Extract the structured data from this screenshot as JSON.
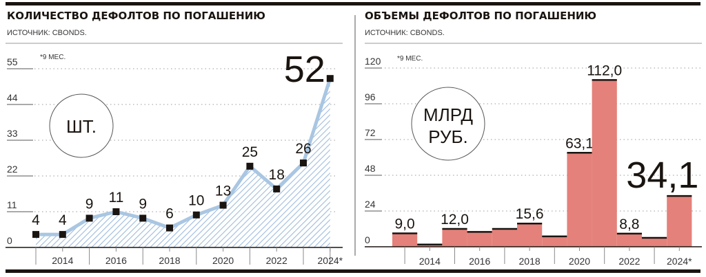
{
  "chart_data": [
    {
      "type": "area",
      "title": "КОЛИЧЕСТВО ДЕФОЛТОВ ПО ПОГАШЕНИЮ",
      "source": "ИСТОЧНИК: CBONDS.",
      "note": "*9 МЕС.",
      "unit": "ШТ.",
      "x": [
        2013,
        2014,
        2015,
        2016,
        2017,
        2018,
        2019,
        2020,
        2021,
        2022,
        2023,
        2024
      ],
      "x_tick_labels": [
        "2014",
        "2016",
        "2018",
        "2020",
        "2022",
        "2024*"
      ],
      "values": [
        4,
        4,
        9,
        11,
        9,
        6,
        10,
        13,
        25,
        18,
        26,
        52
      ],
      "value_labels": [
        "4",
        "4",
        "9",
        "11",
        "9",
        "6",
        "10",
        "13",
        "25",
        "18",
        "26",
        "52."
      ],
      "yticks": [
        "0",
        "11",
        "22",
        "33",
        "44",
        "55"
      ],
      "ylim": [
        0,
        55
      ],
      "grid": true,
      "colors": {
        "line": "#a9c6e2",
        "hatch": "#9dbbdc",
        "marker": "#1a1410"
      }
    },
    {
      "type": "bar",
      "title": "ОБЪЕМЫ ДЕФОЛТОВ ПО ПОГАШЕНИЮ",
      "source": "ИСТОЧНИК: CBONDS.",
      "note": "*9 МЕС.",
      "unit_line1": "МЛРД",
      "unit_line2": "РУБ.",
      "x": [
        2013,
        2014,
        2015,
        2016,
        2017,
        2018,
        2019,
        2020,
        2021,
        2022,
        2023,
        2024
      ],
      "x_tick_labels": [
        "2014",
        "2016",
        "2018",
        "2020",
        "2022",
        "2024*"
      ],
      "values": [
        9.0,
        1.5,
        12.0,
        10.0,
        12.0,
        15.6,
        7.0,
        63.1,
        112.0,
        8.8,
        6.0,
        34.1
      ],
      "value_labels": [
        "9,0",
        "",
        "12,0",
        "",
        "",
        "15,6",
        "",
        "63,1",
        "112,0",
        "8,8",
        "",
        "34,1"
      ],
      "yticks": [
        "0",
        "24",
        "48",
        "72",
        "96",
        "120"
      ],
      "ylim": [
        0,
        120
      ],
      "grid": true,
      "colors": {
        "bar": "#e4817a",
        "cap": "#1a1410"
      }
    }
  ]
}
